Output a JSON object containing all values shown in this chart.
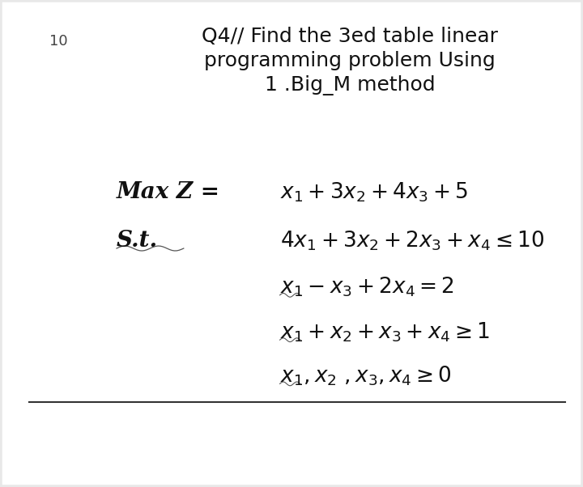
{
  "bg_color": "#e8e8e8",
  "card_color": "#ffffff",
  "number": "10",
  "title_line1": "Q4// Find the 3ed table linear",
  "title_line2": "programming problem Using",
  "title_line3": "1 .Big_M method",
  "obj_label": "Max Z =",
  "st_label": "S.t.",
  "title_fontsize": 18,
  "math_fontsize": 18,
  "label_fontsize": 18
}
